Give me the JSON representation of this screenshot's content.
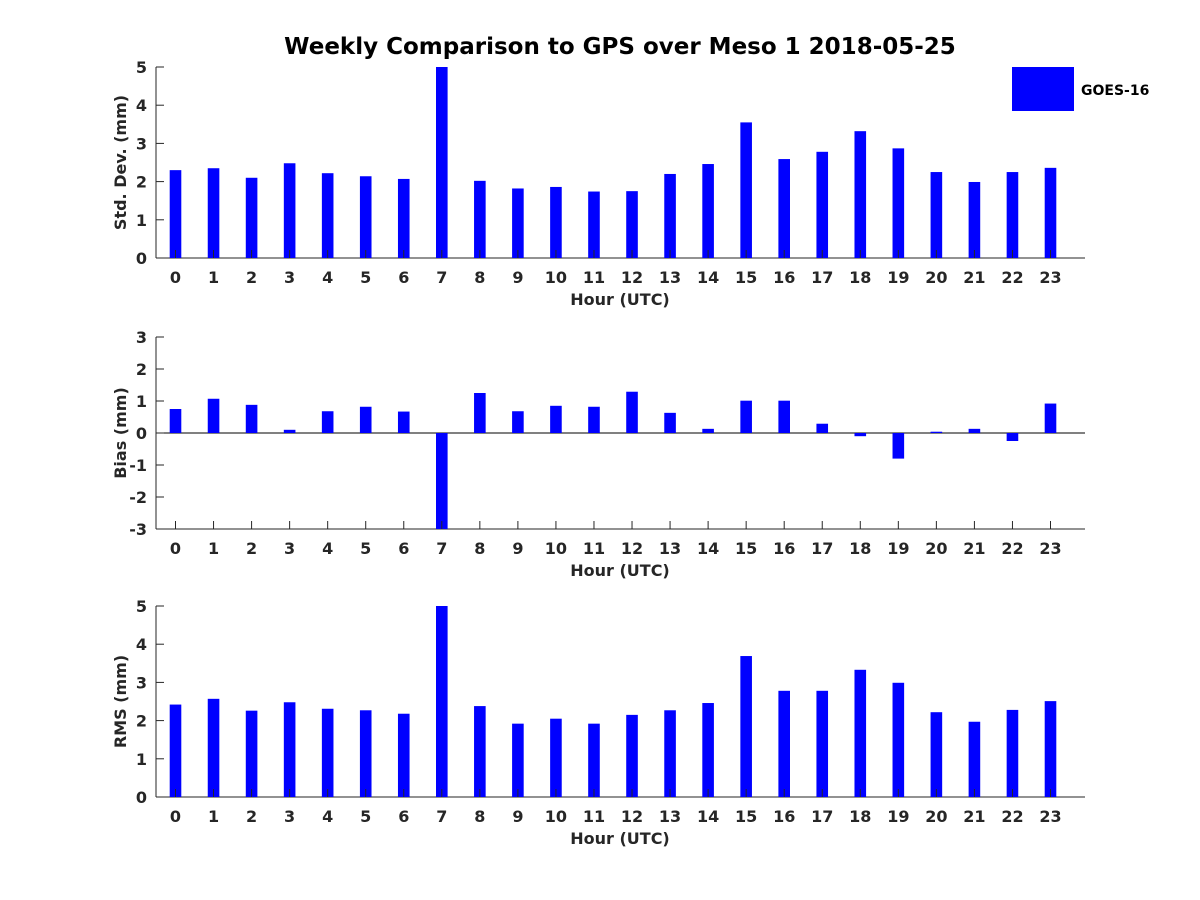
{
  "chart_data": {
    "title": "Weekly Comparison to GPS over Meso 1 2018-05-25",
    "bar_color": "#0000ff",
    "legend": {
      "label": "GOES-16",
      "placement": "top-right"
    },
    "panels": [
      {
        "type": "bar",
        "ylabel": "Std. Dev. (mm)",
        "xlabel": "Hour (UTC)",
        "ylim": [
          0,
          5
        ],
        "yticks": [
          "0",
          "1",
          "2",
          "3",
          "4",
          "5"
        ],
        "categories": [
          "0",
          "1",
          "2",
          "3",
          "4",
          "5",
          "6",
          "7",
          "8",
          "9",
          "10",
          "11",
          "12",
          "13",
          "14",
          "15",
          "16",
          "17",
          "18",
          "19",
          "20",
          "21",
          "22",
          "23"
        ],
        "values": [
          2.3,
          2.35,
          2.1,
          2.48,
          2.22,
          2.14,
          2.07,
          5.0,
          2.02,
          1.82,
          1.86,
          1.74,
          1.75,
          2.2,
          2.46,
          3.55,
          2.59,
          2.78,
          3.32,
          2.87,
          2.25,
          1.99,
          2.25,
          2.36
        ]
      },
      {
        "type": "bar",
        "ylabel": "Bias (mm)",
        "xlabel": "Hour (UTC)",
        "ylim": [
          -3,
          3
        ],
        "yticks": [
          "-3",
          "-2",
          "-1",
          "0",
          "1",
          "2",
          "3"
        ],
        "categories": [
          "0",
          "1",
          "2",
          "3",
          "4",
          "5",
          "6",
          "7",
          "8",
          "9",
          "10",
          "11",
          "12",
          "13",
          "14",
          "15",
          "16",
          "17",
          "18",
          "19",
          "20",
          "21",
          "22",
          "23"
        ],
        "values": [
          0.75,
          1.07,
          0.88,
          0.1,
          0.68,
          0.82,
          0.67,
          -3.0,
          1.25,
          0.68,
          0.85,
          0.82,
          1.29,
          0.63,
          0.13,
          1.01,
          1.01,
          0.29,
          -0.1,
          -0.8,
          0.04,
          0.13,
          -0.25,
          0.92
        ]
      },
      {
        "type": "bar",
        "ylabel": "RMS (mm)",
        "xlabel": "Hour (UTC)",
        "ylim": [
          0,
          5
        ],
        "yticks": [
          "0",
          "1",
          "2",
          "3",
          "4",
          "5"
        ],
        "categories": [
          "0",
          "1",
          "2",
          "3",
          "4",
          "5",
          "6",
          "7",
          "8",
          "9",
          "10",
          "11",
          "12",
          "13",
          "14",
          "15",
          "16",
          "17",
          "18",
          "19",
          "20",
          "21",
          "22",
          "23"
        ],
        "values": [
          2.42,
          2.57,
          2.26,
          2.48,
          2.31,
          2.27,
          2.18,
          5.0,
          2.38,
          1.92,
          2.05,
          1.92,
          2.15,
          2.27,
          2.46,
          3.69,
          2.78,
          2.78,
          3.33,
          2.99,
          2.22,
          1.97,
          2.28,
          2.51
        ]
      }
    ]
  }
}
